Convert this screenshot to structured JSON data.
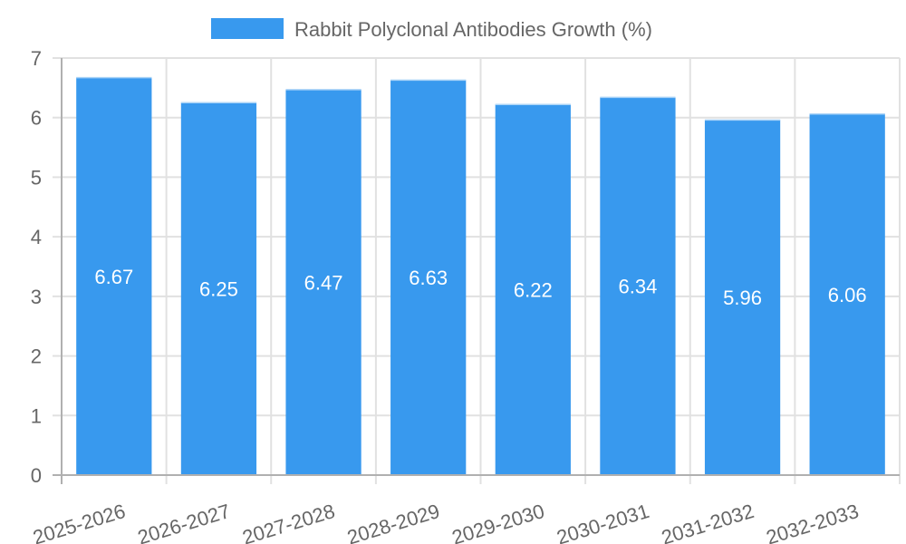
{
  "chart_data": {
    "type": "bar",
    "title": "",
    "legend": [
      {
        "label": "Rabbit Polyclonal Antibodies Growth (%)",
        "color": "#3899ee"
      }
    ],
    "legend_position": "top",
    "categories": [
      "2025-2026",
      "2026-2027",
      "2027-2028",
      "2028-2029",
      "2029-2030",
      "2030-2031",
      "2031-2032",
      "2032-2033"
    ],
    "series": [
      {
        "name": "Rabbit Polyclonal Antibodies Growth (%)",
        "values": [
          6.67,
          6.25,
          6.47,
          6.63,
          6.22,
          6.34,
          5.96,
          6.06
        ],
        "color": "#3899ee"
      }
    ],
    "xlabel": "",
    "ylabel": "",
    "ylim": [
      0,
      7
    ],
    "yticks": [
      0,
      1,
      2,
      3,
      4,
      5,
      6,
      7
    ],
    "grid": true,
    "data_labels": true
  }
}
